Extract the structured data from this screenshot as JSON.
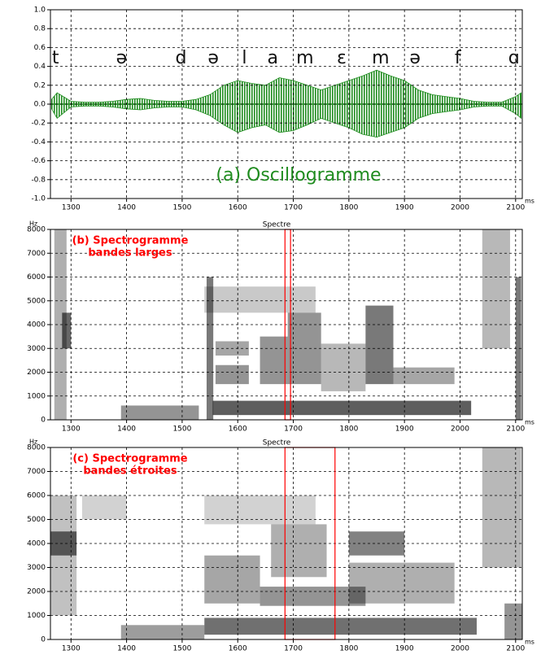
{
  "chart_data": [
    {
      "type": "waveform",
      "title": "(a) Oscillogramme",
      "color": "#1f8c1f",
      "x_unit": "ms",
      "xlim": [
        1263,
        2112
      ],
      "xticks": [
        1300,
        1400,
        1500,
        1600,
        1700,
        1800,
        1900,
        2000,
        2100
      ],
      "ylim": [
        -1,
        1
      ],
      "yticks": [
        {
          "value": 1,
          "label": "1.0"
        },
        0.8,
        0.6,
        0.4,
        0.2,
        {
          "value": 0,
          "label": "0.0"
        },
        -0.2,
        -0.4,
        -0.6,
        -0.8,
        {
          "value": -1,
          "label": "-1.0"
        }
      ],
      "grid": true,
      "phonemes": {
        "labels": [
          "t",
          "ə",
          "d",
          "ə",
          "l",
          "a",
          "m",
          "ɛ",
          "m",
          "ə",
          "f",
          "ɑ"
        ],
        "x": [
          1272,
          1391,
          1498,
          1556,
          1612,
          1663,
          1721,
          1787,
          1857,
          1919,
          1996,
          2097
        ]
      },
      "x": [
        1265,
        1275,
        1300,
        1325,
        1350,
        1375,
        1400,
        1425,
        1450,
        1475,
        1500,
        1525,
        1550,
        1575,
        1600,
        1625,
        1650,
        1675,
        1700,
        1725,
        1750,
        1775,
        1800,
        1825,
        1850,
        1875,
        1900,
        1925,
        1950,
        1975,
        2000,
        2025,
        2050,
        2075,
        2100,
        2110
      ],
      "upper": [
        0.05,
        0.12,
        0.03,
        0.02,
        0.02,
        0.03,
        0.05,
        0.06,
        0.04,
        0.03,
        0.03,
        0.05,
        0.1,
        0.2,
        0.25,
        0.22,
        0.2,
        0.28,
        0.25,
        0.2,
        0.15,
        0.2,
        0.25,
        0.3,
        0.36,
        0.3,
        0.25,
        0.15,
        0.1,
        0.08,
        0.06,
        0.03,
        0.02,
        0.02,
        0.08,
        0.12
      ],
      "lower": [
        -0.05,
        -0.15,
        -0.03,
        -0.02,
        -0.02,
        -0.03,
        -0.05,
        -0.06,
        -0.04,
        -0.03,
        -0.03,
        -0.06,
        -0.12,
        -0.22,
        -0.3,
        -0.25,
        -0.22,
        -0.3,
        -0.28,
        -0.22,
        -0.15,
        -0.2,
        -0.25,
        -0.32,
        -0.35,
        -0.3,
        -0.25,
        -0.15,
        -0.1,
        -0.08,
        -0.06,
        -0.03,
        -0.02,
        -0.02,
        -0.1,
        -0.15
      ]
    },
    {
      "type": "spectrogram",
      "title": [
        "(b) Spectrogramme",
        "bandes larges"
      ],
      "title_color": "#ff0000",
      "label": "Spectre",
      "x_unit": "ms",
      "y_unit": "Hz",
      "xlim": [
        1263,
        2112
      ],
      "xticks": [
        1300,
        1400,
        1500,
        1600,
        1700,
        1800,
        1900,
        2000,
        2100
      ],
      "ylim": [
        0,
        8000
      ],
      "yticks": [
        0,
        1000,
        2000,
        3000,
        4000,
        5000,
        6000,
        7000,
        8000
      ],
      "grid": true,
      "selection": [
        1685,
        1695
      ],
      "selection_color": "#ff0000",
      "bands": [
        {
          "x": [
            1270,
            1292
          ],
          "y": [
            0,
            8000
          ],
          "level": 0.45
        },
        {
          "x": [
            1284,
            1300
          ],
          "y": [
            3000,
            4500
          ],
          "level": 0.85
        },
        {
          "x": [
            1390,
            1530
          ],
          "y": [
            0,
            600
          ],
          "level": 0.6
        },
        {
          "x": [
            1544,
            1556
          ],
          "y": [
            0,
            6000
          ],
          "level": 0.75
        },
        {
          "x": [
            1555,
            2020
          ],
          "y": [
            200,
            800
          ],
          "level": 0.9
        },
        {
          "x": [
            1560,
            1620
          ],
          "y": [
            1500,
            2300
          ],
          "level": 0.6
        },
        {
          "x": [
            1560,
            1620
          ],
          "y": [
            2700,
            3300
          ],
          "level": 0.5
        },
        {
          "x": [
            1640,
            1690
          ],
          "y": [
            1500,
            3500
          ],
          "level": 0.6
        },
        {
          "x": [
            1690,
            1750
          ],
          "y": [
            1500,
            4500
          ],
          "level": 0.6
        },
        {
          "x": [
            1750,
            1830
          ],
          "y": [
            1200,
            3200
          ],
          "level": 0.4
        },
        {
          "x": [
            1830,
            1880
          ],
          "y": [
            1500,
            4800
          ],
          "level": 0.75
        },
        {
          "x": [
            1880,
            1990
          ],
          "y": [
            1500,
            2200
          ],
          "level": 0.5
        },
        {
          "x": [
            1540,
            1740
          ],
          "y": [
            4500,
            5600
          ],
          "level": 0.3
        },
        {
          "x": [
            2040,
            2090
          ],
          "y": [
            3000,
            8000
          ],
          "level": 0.4
        },
        {
          "x": [
            2100,
            2110
          ],
          "y": [
            0,
            6000
          ],
          "level": 0.75
        }
      ]
    },
    {
      "type": "spectrogram",
      "title": [
        "(c) Spectrogramme",
        "bandes étroites"
      ],
      "title_color": "#ff0000",
      "label": "Spectre",
      "x_unit": "ms",
      "y_unit": "Hz",
      "xlim": [
        1263,
        2112
      ],
      "xticks": [
        1300,
        1400,
        1500,
        1600,
        1700,
        1800,
        1900,
        2000,
        2100
      ],
      "ylim": [
        0,
        8000
      ],
      "yticks": [
        0,
        1000,
        2000,
        3000,
        4000,
        5000,
        6000,
        7000,
        8000
      ],
      "grid": true,
      "selection": [
        1685,
        1775
      ],
      "selection_color": "#ff0000",
      "bands": [
        {
          "x": [
            1263,
            1310
          ],
          "y": [
            3500,
            4500
          ],
          "level": 0.8
        },
        {
          "x": [
            1263,
            1310
          ],
          "y": [
            1000,
            6000
          ],
          "level": 0.35
        },
        {
          "x": [
            1320,
            1400
          ],
          "y": [
            5000,
            6000
          ],
          "level": 0.25
        },
        {
          "x": [
            1390,
            1540
          ],
          "y": [
            0,
            600
          ],
          "level": 0.55
        },
        {
          "x": [
            1540,
            2030
          ],
          "y": [
            200,
            900
          ],
          "level": 0.8
        },
        {
          "x": [
            1540,
            1640
          ],
          "y": [
            1500,
            3500
          ],
          "level": 0.5
        },
        {
          "x": [
            1640,
            1830
          ],
          "y": [
            1400,
            2200
          ],
          "level": 0.6
        },
        {
          "x": [
            1660,
            1760
          ],
          "y": [
            2600,
            4800
          ],
          "level": 0.45
        },
        {
          "x": [
            1800,
            1900
          ],
          "y": [
            3500,
            4500
          ],
          "level": 0.7
        },
        {
          "x": [
            1800,
            1990
          ],
          "y": [
            1500,
            3200
          ],
          "level": 0.45
        },
        {
          "x": [
            1540,
            1740
          ],
          "y": [
            4800,
            6000
          ],
          "level": 0.25
        },
        {
          "x": [
            2040,
            2110
          ],
          "y": [
            3000,
            8000
          ],
          "level": 0.4
        },
        {
          "x": [
            2080,
            2112
          ],
          "y": [
            0,
            1500
          ],
          "level": 0.6
        }
      ]
    }
  ]
}
